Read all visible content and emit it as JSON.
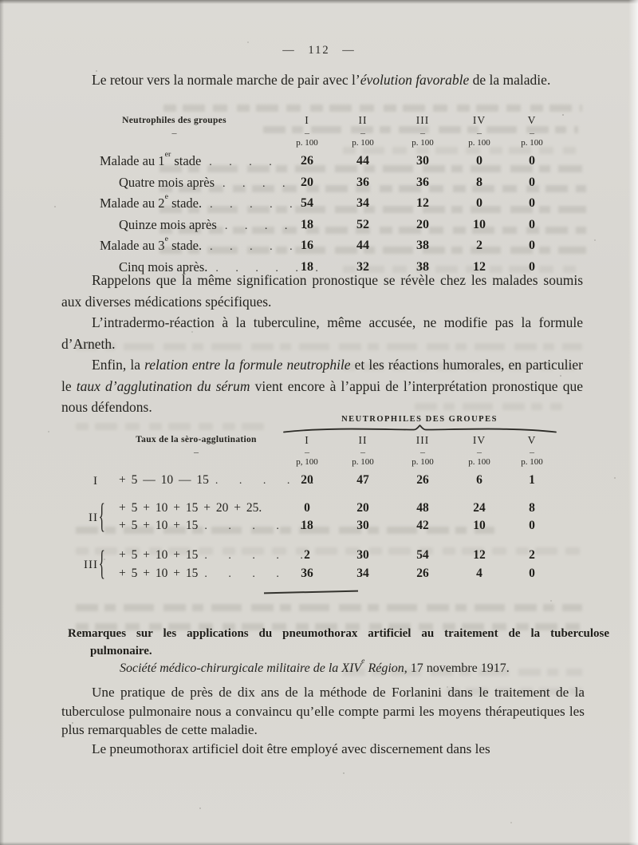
{
  "page": {
    "number": "— 112 —"
  },
  "paragraphs": {
    "p1": [
      {
        "t": "Le retour vers la normale marche de pair avec l’"
      },
      {
        "t": "évolution favorable",
        "i": true
      },
      {
        "t": " de la maladie."
      }
    ],
    "p2": [
      {
        "t": "Rappelons que la même signification pronostique se révèle chez les malades soumis aux diverses médications spécifiques."
      }
    ],
    "p3": [
      {
        "t": "L’intradermo-réaction à la tuberculine, même accusée, ne modifie pas la formule d’Arneth."
      }
    ],
    "p4": [
      {
        "t": "Enfin, la "
      },
      {
        "t": "relation entre la formule neutrophile",
        "i": true
      },
      {
        "t": " et les réactions humorales, en particulier le "
      },
      {
        "t": "taux d’agglutination du sérum",
        "i": true
      },
      {
        "t": " vient encore à l’appui de l’interprétation pronostique que nous défendons."
      }
    ],
    "p5": [
      {
        "t": "Une pratique de près de dix ans de la méthode de Forlanini dans le traitement de la tuberculose pulmonaire nous a convaincu qu’elle compte parmi les moyens thérapeutiques les plus remarquables de cette maladie."
      }
    ],
    "p6": [
      {
        "t": "Le pneumothorax artificiel doit être employé avec discernement dans les"
      }
    ]
  },
  "table1": {
    "corner_label": "Neutrophiles des groupes",
    "corner_dash": "–",
    "columns": [
      "I",
      "II",
      "III",
      "IV",
      "V"
    ],
    "col_dash": "–",
    "col_sub": [
      "p. 100",
      "p. 100",
      "p. 100",
      "p. 100",
      "p. 100"
    ],
    "rows": [
      {
        "label": [
          {
            "t": "Malade au 1"
          },
          {
            "t": "er",
            "sup": true
          },
          {
            "t": " stade"
          }
        ],
        "dots": ". . . .",
        "indent": false,
        "values": [
          "26",
          "44",
          "30",
          "0",
          "0"
        ]
      },
      {
        "label": [
          {
            "t": "Quatre mois après"
          }
        ],
        "dots": ". . . .",
        "indent": true,
        "values": [
          "20",
          "36",
          "36",
          "8",
          "0"
        ]
      },
      {
        "label": [
          {
            "t": "Malade au 2"
          },
          {
            "t": "e",
            "sup": true
          },
          {
            "t": " stade."
          }
        ],
        "dots": ". . . . .",
        "indent": false,
        "values": [
          "54",
          "34",
          "12",
          "0",
          "0"
        ]
      },
      {
        "label": [
          {
            "t": "Quinze mois après"
          }
        ],
        "dots": ". . . . .",
        "indent": true,
        "values": [
          "18",
          "52",
          "20",
          "10",
          "0"
        ]
      },
      {
        "label": [
          {
            "t": "Malade au 3"
          },
          {
            "t": "e",
            "sup": true
          },
          {
            "t": " stade."
          }
        ],
        "dots": ". . . . .",
        "indent": false,
        "values": [
          "16",
          "44",
          "38",
          "2",
          "0"
        ]
      },
      {
        "label": [
          {
            "t": "Cinq mois après."
          }
        ],
        "dots": ". . . . . .",
        "indent": true,
        "values": [
          "18",
          "32",
          "38",
          "12",
          "0"
        ]
      }
    ]
  },
  "table2": {
    "group_header": "NEUTROPHILES DES GROUPES",
    "left_header": "Taux de la sèro-agglutination",
    "left_dash": "–",
    "columns": [
      "I",
      "II",
      "III",
      "IV",
      "V"
    ],
    "col_dash": "–",
    "col_sub": [
      "p, 100",
      "p. 100",
      "p. 100",
      "p. 100",
      "p. 100"
    ],
    "groups": [
      {
        "numeral": "I",
        "brace": false,
        "lines": [
          {
            "formula": "+ 5 — 10 — 15",
            "dots": ". . . . .",
            "values": [
              "20",
              "47",
              "26",
              "6",
              "1"
            ]
          }
        ]
      },
      {
        "numeral": "II",
        "brace": true,
        "lines": [
          {
            "formula": "+ 5 + 10 + 15 + 20 + 25.",
            "dots": "",
            "values": [
              "0",
              "20",
              "48",
              "24",
              "8"
            ]
          },
          {
            "formula": "+ 5 + 10 + 15",
            "dots": ". . . . .",
            "values": [
              "18",
              "30",
              "42",
              "10",
              "0"
            ]
          }
        ]
      },
      {
        "numeral": "III",
        "brace": true,
        "lines": [
          {
            "formula": "+ 5 + 10 + 15",
            "dots": ". . . . .",
            "values": [
              "2",
              "30",
              "54",
              "12",
              "2"
            ]
          },
          {
            "formula": "+ 5 + 10 + 15",
            "dots": ". . . .",
            "values": [
              "36",
              "34",
              "26",
              "4",
              "0"
            ]
          }
        ]
      }
    ]
  },
  "section": {
    "heading": "Remarques sur les applications du pneumothorax artificiel au traitement de la tuberculose pulmonaire.",
    "subheading": [
      {
        "t": "Société médico-chirurgicale militaire de la XIV",
        "i": true
      },
      {
        "t": "e",
        "i": true,
        "sup": true
      },
      {
        "t": " Région",
        "i": true
      },
      {
        "t": ", 17 novembre 1917."
      }
    ]
  },
  "colors": {
    "paper": "#d8d6d1",
    "ink": "#24231f"
  }
}
